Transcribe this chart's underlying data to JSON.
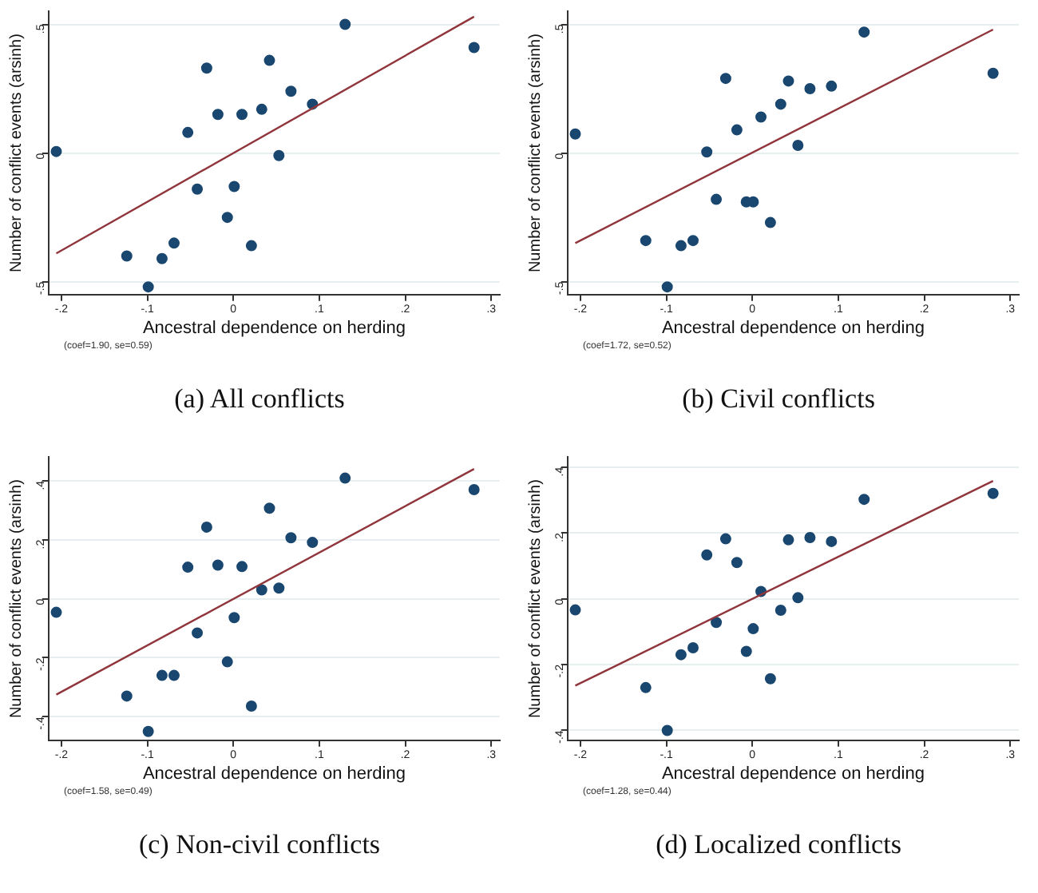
{
  "chart_data": [
    {
      "type": "scatter",
      "title": "(a) All conflicts",
      "xlabel": "Ancestral dependence on herding",
      "ylabel": "Number of conflict events (arsinh)",
      "annotations": [
        "(coef=1.90, se=0.59)"
      ],
      "xlim": [
        -0.215,
        0.31
      ],
      "xticks": [
        {
          "value": -0.2,
          "label": "-.2"
        },
        {
          "value": -0.1,
          "label": "-.1"
        },
        {
          "value": 0,
          "label": "0"
        },
        {
          "value": 0.1,
          "label": ".1"
        },
        {
          "value": 0.2,
          "label": ".2"
        },
        {
          "value": 0.3,
          "label": ".3"
        }
      ],
      "ylim": [
        -0.55,
        0.55
      ],
      "yticks": [
        {
          "value": -0.5,
          "label": "-.5"
        },
        {
          "value": 0,
          "label": "0"
        },
        {
          "value": 0.5,
          "label": ".5"
        }
      ],
      "grid": "y",
      "legend": false,
      "series": [
        {
          "marker": "circle",
          "color": "#1a476f",
          "x": [
            -0.206,
            -0.124,
            -0.099,
            -0.083,
            -0.069,
            -0.053,
            -0.042,
            -0.031,
            -0.018,
            -0.007,
            0.001,
            0.01,
            0.021,
            0.033,
            0.042,
            0.053,
            0.067,
            0.092,
            0.13,
            0.28
          ],
          "values": [
            0.006,
            -0.4,
            -0.52,
            -0.41,
            -0.35,
            0.08,
            -0.14,
            0.33,
            0.15,
            -0.25,
            -0.13,
            0.15,
            -0.36,
            0.17,
            0.36,
            -0.01,
            0.24,
            0.19,
            0.5,
            0.41
          ]
        },
        {
          "type": "line",
          "marker": "none",
          "color": "#90353b",
          "x": [
            -0.206,
            0.28
          ],
          "values": [
            -0.39,
            0.53
          ]
        }
      ]
    },
    {
      "type": "scatter",
      "title": "(b) Civil conflicts",
      "xlabel": "Ancestral dependence on herding",
      "ylabel": "Number of conflict events (arsinh)",
      "annotations": [
        "(coef=1.72, se=0.52)"
      ],
      "xlim": [
        -0.215,
        0.31
      ],
      "xticks": [
        {
          "value": -0.2,
          "label": "-.2"
        },
        {
          "value": -0.1,
          "label": "-.1"
        },
        {
          "value": 0,
          "label": "0"
        },
        {
          "value": 0.1,
          "label": ".1"
        },
        {
          "value": 0.2,
          "label": ".2"
        },
        {
          "value": 0.3,
          "label": ".3"
        }
      ],
      "ylim": [
        -0.55,
        0.55
      ],
      "yticks": [
        {
          "value": -0.5,
          "label": "-.5"
        },
        {
          "value": 0,
          "label": "0"
        },
        {
          "value": 0.5,
          "label": ".5"
        }
      ],
      "grid": "y",
      "legend": false,
      "series": [
        {
          "marker": "circle",
          "color": "#1a476f",
          "x": [
            -0.206,
            -0.124,
            -0.099,
            -0.083,
            -0.069,
            -0.053,
            -0.042,
            -0.031,
            -0.018,
            -0.007,
            0.001,
            0.01,
            0.021,
            0.033,
            0.042,
            0.053,
            0.067,
            0.092,
            0.13,
            0.28
          ],
          "values": [
            0.074,
            -0.34,
            -0.52,
            -0.36,
            -0.34,
            0.004,
            -0.18,
            0.29,
            0.09,
            -0.19,
            -0.19,
            0.14,
            -0.27,
            0.19,
            0.28,
            0.03,
            0.25,
            0.26,
            0.47,
            0.31
          ]
        },
        {
          "type": "line",
          "marker": "none",
          "color": "#90353b",
          "x": [
            -0.206,
            0.28
          ],
          "values": [
            -0.35,
            0.48
          ]
        }
      ]
    },
    {
      "type": "scatter",
      "title": "(c) Non-civil conflicts",
      "xlabel": "Ancestral dependence on herding",
      "ylabel": "Number of conflict events (arsinh)",
      "annotations": [
        "(coef=1.58, se=0.49)"
      ],
      "xlim": [
        -0.215,
        0.31
      ],
      "xticks": [
        {
          "value": -0.2,
          "label": "-.2"
        },
        {
          "value": -0.1,
          "label": "-.1"
        },
        {
          "value": 0,
          "label": "0"
        },
        {
          "value": 0.1,
          "label": ".1"
        },
        {
          "value": 0.2,
          "label": ".2"
        },
        {
          "value": 0.3,
          "label": ".3"
        }
      ],
      "ylim": [
        -0.48,
        0.48
      ],
      "yticks": [
        {
          "value": -0.4,
          "label": "-.4"
        },
        {
          "value": -0.2,
          "label": "-.2"
        },
        {
          "value": 0,
          "label": "0"
        },
        {
          "value": 0.2,
          "label": ".2"
        },
        {
          "value": 0.4,
          "label": ".4"
        }
      ],
      "grid": "y",
      "legend": false,
      "series": [
        {
          "marker": "circle",
          "color": "#1a476f",
          "x": [
            -0.206,
            -0.124,
            -0.099,
            -0.083,
            -0.069,
            -0.053,
            -0.042,
            -0.031,
            -0.018,
            -0.007,
            0.001,
            0.01,
            0.021,
            0.033,
            0.042,
            0.053,
            0.067,
            0.092,
            0.13,
            0.28
          ],
          "values": [
            -0.046,
            -0.33,
            -0.45,
            -0.26,
            -0.26,
            0.107,
            -0.116,
            0.243,
            0.114,
            -0.214,
            -0.064,
            0.109,
            -0.364,
            0.03,
            0.307,
            0.036,
            0.207,
            0.191,
            0.409,
            0.37
          ]
        },
        {
          "type": "line",
          "marker": "none",
          "color": "#90353b",
          "x": [
            -0.206,
            0.28
          ],
          "values": [
            -0.325,
            0.44
          ]
        }
      ]
    },
    {
      "type": "scatter",
      "title": "(d) Localized conflicts",
      "xlabel": "Ancestral dependence on herding",
      "ylabel": "Number of conflict events (arsinh)",
      "annotations": [
        "(coef=1.28, se=0.44)"
      ],
      "xlim": [
        -0.215,
        0.31
      ],
      "xticks": [
        {
          "value": -0.2,
          "label": "-.2"
        },
        {
          "value": -0.1,
          "label": "-.1"
        },
        {
          "value": 0,
          "label": "0"
        },
        {
          "value": 0.1,
          "label": ".1"
        },
        {
          "value": 0.2,
          "label": ".2"
        },
        {
          "value": 0.3,
          "label": ".3"
        }
      ],
      "ylim": [
        -0.43,
        0.43
      ],
      "yticks": [
        {
          "value": -0.4,
          "label": "-.4"
        },
        {
          "value": -0.2,
          "label": "-.2"
        },
        {
          "value": 0,
          "label": "0"
        },
        {
          "value": 0.2,
          "label": ".2"
        },
        {
          "value": 0.4,
          "label": ".4"
        }
      ],
      "grid": "y",
      "legend": false,
      "series": [
        {
          "marker": "circle",
          "color": "#1a476f",
          "x": [
            -0.206,
            -0.124,
            -0.099,
            -0.083,
            -0.069,
            -0.053,
            -0.042,
            -0.031,
            -0.018,
            -0.007,
            0.001,
            0.01,
            0.021,
            0.033,
            0.042,
            0.053,
            0.067,
            0.092,
            0.13,
            0.28
          ],
          "values": [
            -0.034,
            -0.27,
            -0.4,
            -0.17,
            -0.149,
            0.133,
            -0.072,
            0.182,
            0.11,
            -0.16,
            -0.091,
            0.022,
            -0.243,
            -0.035,
            0.179,
            0.003,
            0.186,
            0.174,
            0.302,
            0.32
          ]
        },
        {
          "type": "line",
          "marker": "none",
          "color": "#90353b",
          "x": [
            -0.206,
            0.28
          ],
          "values": [
            -0.264,
            0.358
          ]
        }
      ]
    }
  ]
}
